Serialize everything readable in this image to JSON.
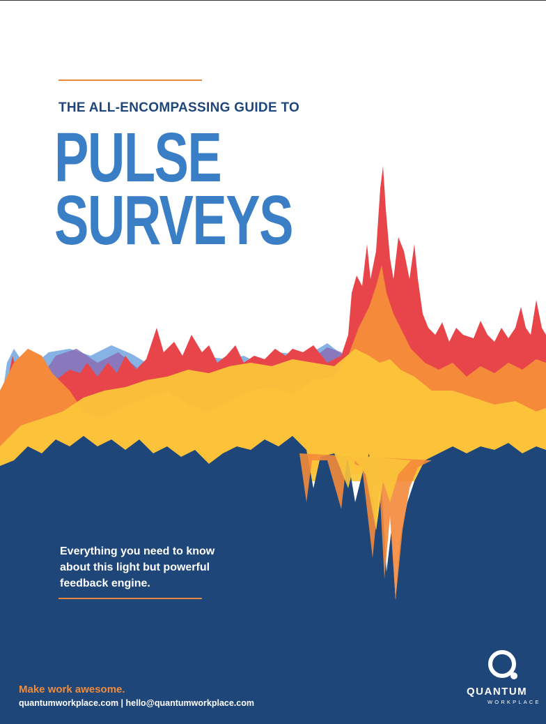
{
  "cover": {
    "eyebrow": "THE ALL-ENCOMPASSING GUIDE TO",
    "title_line1": "PULSE",
    "title_line2": "SURVEYS",
    "tagline": "Everything you need to know about this light but powerful feedback engine.",
    "slogan": "Make work awesome.",
    "contact": "quantumworkplace.com | hello@quantumworkplace.com"
  },
  "logo": {
    "name": "QUANTUM",
    "sub": "WORKPLACE",
    "icon": "quantum-q-icon"
  },
  "colors": {
    "navy": "#1f4679",
    "title_blue": "#3a7ec6",
    "accent_orange": "#e8883a",
    "wave_red": "#e8454a",
    "wave_orange": "#f48a3a",
    "wave_yellow": "#fbc53a"
  }
}
